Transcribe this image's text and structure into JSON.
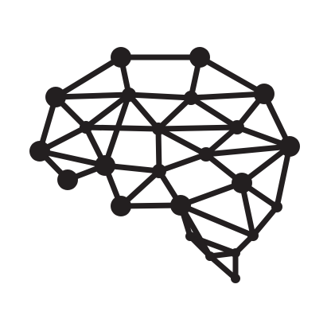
{
  "icon": {
    "name": "brain-network-icon",
    "color": "#231f20",
    "background": "#ffffff"
  }
}
